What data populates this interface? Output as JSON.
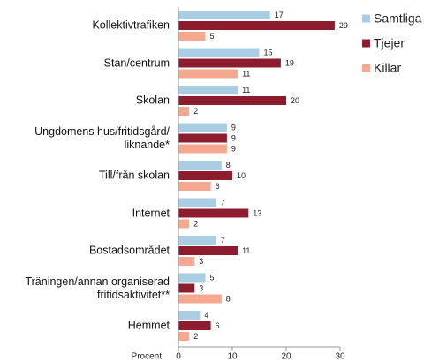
{
  "chart_data": {
    "type": "hbar",
    "categories": [
      "Kollektivtrafiken",
      "Stan/centrum",
      "Skolan",
      "Ungdomens hus/fritidsgård/\nliknande*",
      "Till/från skolan",
      "Internet",
      "Bostadsområdet",
      "Träningen/annan organiserad\nfritidsaktivitet**",
      "Hemmet"
    ],
    "series": [
      {
        "name": "Samtliga",
        "color": "#a9cde2",
        "values": [
          17,
          15,
          11,
          9,
          8,
          7,
          7,
          5,
          4
        ]
      },
      {
        "name": "Tjejer",
        "color": "#8c1c2e",
        "values": [
          29,
          19,
          20,
          9,
          10,
          13,
          11,
          3,
          6
        ]
      },
      {
        "name": "Killar",
        "color": "#f4a88f",
        "values": [
          5,
          11,
          2,
          9,
          6,
          2,
          3,
          8,
          2
        ]
      }
    ],
    "xlabel": "Procent",
    "xlim": [
      0,
      30
    ],
    "xticks": [
      0,
      10,
      20,
      30
    ],
    "legend": "right"
  }
}
